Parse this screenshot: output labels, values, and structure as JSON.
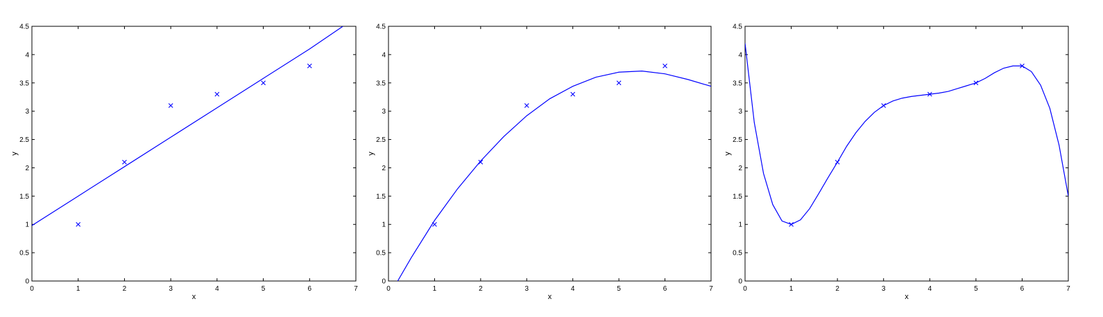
{
  "chart_data": [
    {
      "type": "scatter",
      "title": "",
      "xlabel": "x",
      "ylabel": "y",
      "xlim": [
        0,
        7
      ],
      "ylim": [
        0,
        4.5
      ],
      "xticks": [
        "0",
        "1",
        "2",
        "3",
        "4",
        "5",
        "6",
        "7"
      ],
      "yticks": [
        "0",
        "0.5",
        "1",
        "1.5",
        "2",
        "2.5",
        "3",
        "3.5",
        "4",
        "4.5"
      ],
      "grid": false,
      "marker": "x",
      "series_color": "#0000ff",
      "points": {
        "x": [
          1,
          2,
          3,
          4,
          5,
          6
        ],
        "y": [
          1.0,
          2.1,
          3.1,
          3.3,
          3.5,
          3.8
        ]
      },
      "fit_curve": {
        "x": [
          0,
          1,
          2,
          3,
          4,
          5,
          6,
          6.72
        ],
        "y": [
          0.98,
          1.5,
          2.02,
          2.54,
          3.06,
          3.58,
          4.1,
          4.5
        ]
      }
    },
    {
      "type": "scatter",
      "title": "",
      "xlabel": "x",
      "ylabel": "y",
      "xlim": [
        0,
        7
      ],
      "ylim": [
        0,
        4.5
      ],
      "xticks": [
        "0",
        "1",
        "2",
        "3",
        "4",
        "5",
        "6",
        "7"
      ],
      "yticks": [
        "0",
        "0.5",
        "1",
        "1.5",
        "2",
        "2.5",
        "3",
        "3.5",
        "4",
        "4.5"
      ],
      "grid": false,
      "marker": "x",
      "series_color": "#0000ff",
      "points": {
        "x": [
          1,
          2,
          3,
          4,
          5,
          6
        ],
        "y": [
          1.0,
          2.1,
          3.1,
          3.3,
          3.5,
          3.8
        ]
      },
      "fit_curve": {
        "x": [
          0.2,
          0.5,
          1,
          1.5,
          2,
          2.5,
          3,
          3.5,
          4,
          4.5,
          5,
          5.5,
          6,
          6.5,
          7
        ],
        "y": [
          0.0,
          0.42,
          1.07,
          1.63,
          2.12,
          2.55,
          2.92,
          3.22,
          3.44,
          3.6,
          3.69,
          3.71,
          3.66,
          3.56,
          3.44
        ]
      }
    },
    {
      "type": "scatter",
      "title": "",
      "xlabel": "x",
      "ylabel": "y",
      "xlim": [
        0,
        7
      ],
      "ylim": [
        0,
        4.5
      ],
      "xticks": [
        "0",
        "1",
        "2",
        "3",
        "4",
        "5",
        "6",
        "7"
      ],
      "yticks": [
        "0",
        "0.5",
        "1",
        "1.5",
        "2",
        "2.5",
        "3",
        "3.5",
        "4",
        "4.5"
      ],
      "grid": false,
      "marker": "x",
      "series_color": "#0000ff",
      "points": {
        "x": [
          1,
          2,
          3,
          4,
          5,
          6
        ],
        "y": [
          1.0,
          2.1,
          3.1,
          3.3,
          3.5,
          3.8
        ]
      },
      "fit_curve": {
        "x": [
          0,
          0.2,
          0.4,
          0.6,
          0.8,
          1.0,
          1.2,
          1.4,
          1.6,
          1.8,
          2.0,
          2.2,
          2.4,
          2.6,
          2.8,
          3.0,
          3.2,
          3.4,
          3.6,
          3.8,
          4.0,
          4.2,
          4.4,
          4.6,
          4.8,
          5.0,
          5.2,
          5.4,
          5.6,
          5.8,
          6.0,
          6.2,
          6.4,
          6.6,
          6.8,
          7.0
        ],
        "y": [
          4.2,
          2.8,
          1.9,
          1.35,
          1.06,
          1.0,
          1.08,
          1.28,
          1.55,
          1.83,
          2.1,
          2.38,
          2.62,
          2.82,
          2.98,
          3.1,
          3.18,
          3.23,
          3.26,
          3.28,
          3.3,
          3.32,
          3.35,
          3.4,
          3.45,
          3.5,
          3.58,
          3.68,
          3.76,
          3.8,
          3.8,
          3.7,
          3.46,
          3.05,
          2.4,
          1.5
        ]
      }
    }
  ]
}
